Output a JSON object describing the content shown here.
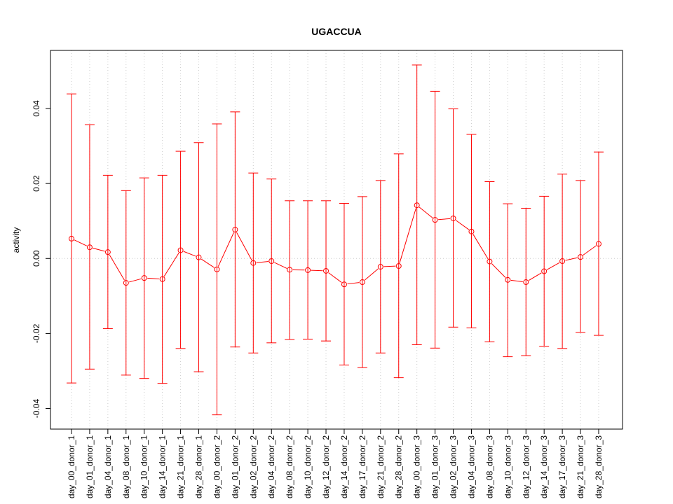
{
  "chart_data": {
    "type": "line",
    "title": "UGACCUA",
    "xlabel": "",
    "ylabel": "activity",
    "ylim": [
      -0.0455,
      0.0555
    ],
    "y_ticks": [
      -0.04,
      -0.02,
      0.0,
      0.02,
      0.04
    ],
    "y_tick_labels": [
      "-0.04",
      "-0.02",
      "0.00",
      "0.02",
      "0.04"
    ],
    "grid": true,
    "color": "#ff0000",
    "categories": [
      "day_00_donor_1",
      "day_01_donor_1",
      "day_04_donor_1",
      "day_08_donor_1",
      "day_10_donor_1",
      "day_14_donor_1",
      "day_21_donor_1",
      "day_28_donor_1",
      "day_00_donor_2",
      "day_01_donor_2",
      "day_02_donor_2",
      "day_04_donor_2",
      "day_08_donor_2",
      "day_10_donor_2",
      "day_12_donor_2",
      "day_14_donor_2",
      "day_17_donor_2",
      "day_21_donor_2",
      "day_28_donor_2",
      "day_00_donor_3",
      "day_01_donor_3",
      "day_02_donor_3",
      "day_04_donor_3",
      "day_08_donor_3",
      "day_10_donor_3",
      "day_12_donor_3",
      "day_14_donor_3",
      "day_17_donor_3",
      "day_21_donor_3",
      "day_28_donor_3"
    ],
    "values": [
      0.0053,
      0.003,
      0.0017,
      -0.0065,
      -0.0052,
      -0.0055,
      0.0022,
      0.0003,
      -0.0029,
      0.0077,
      -0.0012,
      -0.0007,
      -0.003,
      -0.0031,
      -0.0033,
      -0.0069,
      -0.0063,
      -0.0022,
      -0.002,
      0.0142,
      0.0103,
      0.0107,
      0.0072,
      -0.0008,
      -0.0057,
      -0.0063,
      -0.0034,
      -0.0007,
      0.0004,
      0.0039
    ],
    "upper": [
      0.0439,
      0.0357,
      0.0222,
      0.0181,
      0.0215,
      0.0222,
      0.0286,
      0.0309,
      0.0359,
      0.0391,
      0.0228,
      0.0212,
      0.0154,
      0.0154,
      0.0154,
      0.0147,
      0.0165,
      0.0208,
      0.0279,
      0.0516,
      0.0446,
      0.0399,
      0.0331,
      0.0205,
      0.0146,
      0.0134,
      0.0166,
      0.0225,
      0.0208,
      0.0284
    ],
    "lower": [
      -0.0332,
      -0.0295,
      -0.0187,
      -0.0311,
      -0.032,
      -0.0333,
      -0.024,
      -0.0302,
      -0.0417,
      -0.0236,
      -0.0252,
      -0.0225,
      -0.0216,
      -0.0215,
      -0.022,
      -0.0284,
      -0.0291,
      -0.0252,
      -0.0318,
      -0.023,
      -0.0239,
      -0.0183,
      -0.0185,
      -0.0222,
      -0.0262,
      -0.0259,
      -0.0234,
      -0.024,
      -0.0197,
      -0.0205
    ]
  }
}
